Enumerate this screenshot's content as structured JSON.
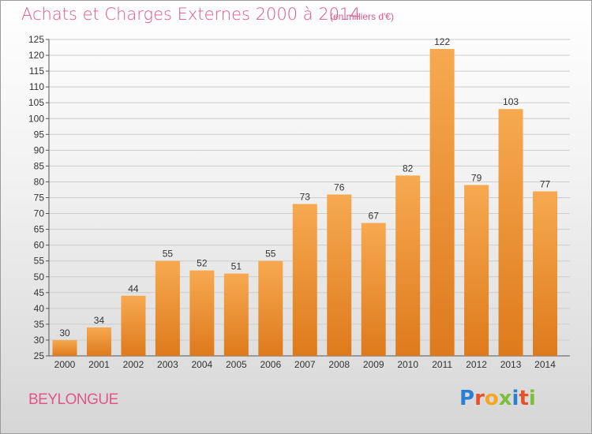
{
  "header": {
    "title": "Achats et Charges Externes 2000 à 2014",
    "unit": "(en milliers d'€)"
  },
  "footer": {
    "commune": "BEYLONGUE",
    "logo_text": "Proxiti",
    "logo_colors": [
      "#2a7fd4",
      "#e8502a",
      "#f5a623",
      "#7bbf3a",
      "#2a7fd4",
      "#e8502a",
      "#7bbf3a"
    ]
  },
  "colors": {
    "bar_top": "#f7a950",
    "bar_bottom": "#de7a1c",
    "title": "#e0558a",
    "grid": "#cccccc"
  },
  "chart_data": {
    "type": "bar",
    "title": "Achats et Charges Externes 2000 à 2014",
    "categories": [
      "2000",
      "2001",
      "2002",
      "2003",
      "2004",
      "2005",
      "2006",
      "2007",
      "2008",
      "2009",
      "2010",
      "2011",
      "2012",
      "2013",
      "2014"
    ],
    "values": [
      30,
      34,
      44,
      55,
      52,
      51,
      55,
      73,
      76,
      67,
      82,
      122,
      79,
      103,
      77
    ],
    "ylim": [
      25,
      125
    ],
    "yticks": [
      25,
      30,
      35,
      40,
      45,
      50,
      55,
      60,
      65,
      70,
      75,
      80,
      85,
      90,
      95,
      100,
      105,
      110,
      115,
      120,
      125
    ],
    "grid": true,
    "xlabel": "",
    "ylabel": ""
  }
}
